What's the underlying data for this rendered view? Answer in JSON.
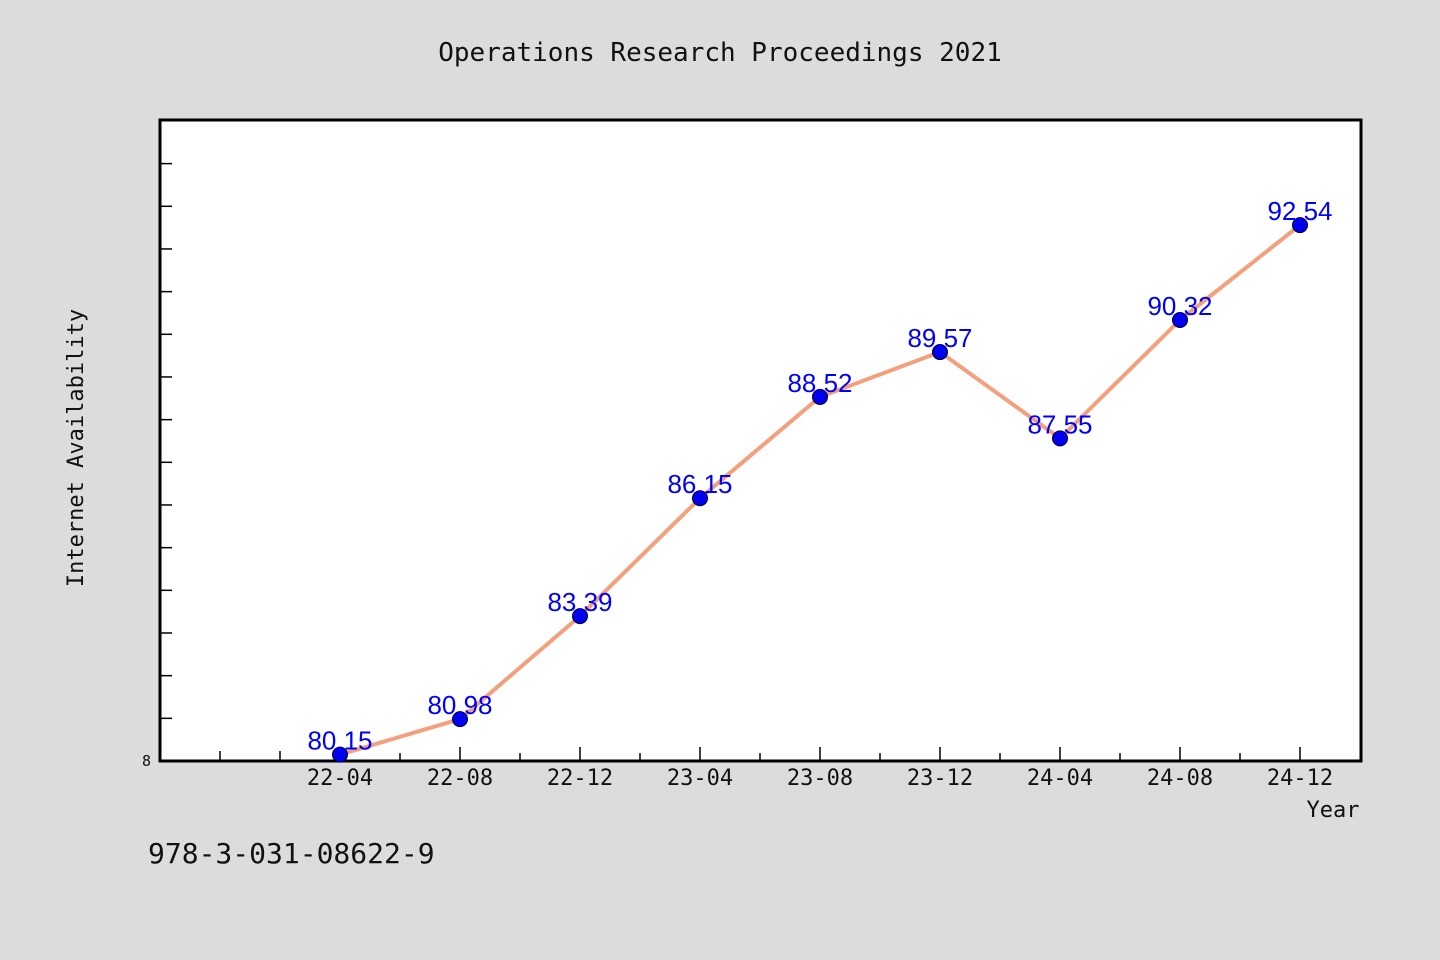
{
  "chart_data": {
    "type": "line",
    "title": "Operations Research Proceedings 2021",
    "xlabel": "Year",
    "ylabel": "Internet Availability",
    "categories": [
      "22-04",
      "22-08",
      "22-12",
      "23-04",
      "23-08",
      "23-12",
      "24-04",
      "24-08",
      "24-12"
    ],
    "series": [
      {
        "values": [
          80.15,
          80.98,
          83.39,
          86.15,
          88.52,
          89.57,
          87.55,
          90.32,
          92.54
        ],
        "labels": [
          "80.15",
          "80.98",
          "83.39",
          "86.15",
          "88.52",
          "89.57",
          "87.55",
          "90.32",
          "92.54"
        ],
        "line_color": "#f4a07c",
        "marker_color": "#0000ee"
      }
    ],
    "y_origin_label": "8",
    "ylim": [
      80.0,
      95.0
    ],
    "grid": false,
    "legend": "none"
  },
  "footer": {
    "isbn": "978-3-031-08622-9"
  },
  "colors": {
    "background": "#dcdcdc",
    "plot_background": "#ffffff",
    "label_color": "#0000ff"
  }
}
